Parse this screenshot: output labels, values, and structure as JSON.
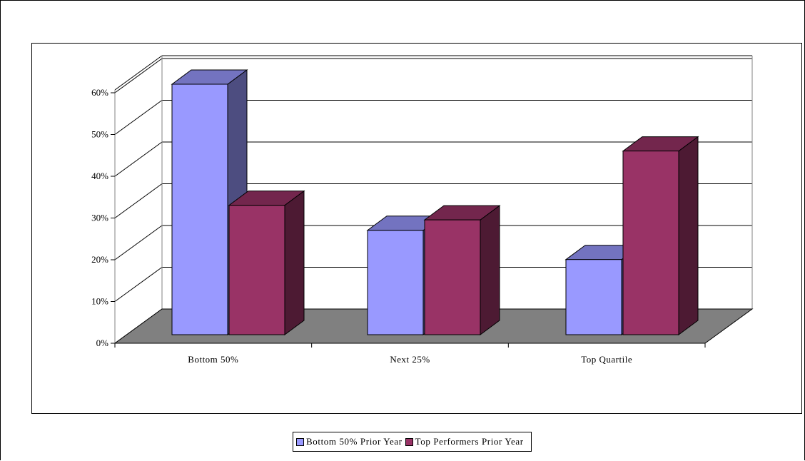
{
  "chart_data": {
    "type": "bar",
    "categories": [
      "Bottom 50%",
      "Next 25%",
      "Top Quartile"
    ],
    "series": [
      {
        "name": "Bottom 50% Prior Year",
        "values": [
          0.6,
          0.25,
          0.18
        ],
        "color": "#9999ff",
        "side_color": "#4d4d80",
        "top_color": "#7373c0"
      },
      {
        "name": "Top Performers Prior Year",
        "values": [
          0.31,
          0.275,
          0.44
        ],
        "color": "#993366",
        "side_color": "#4d1a33",
        "top_color": "#73264d"
      }
    ],
    "y_ticks": [
      "0%",
      "10%",
      "20%",
      "30%",
      "40%",
      "50%",
      "60%"
    ],
    "ylim": [
      0,
      0.6
    ],
    "grid": true,
    "legend_position": "bottom",
    "floor_color": "#808080",
    "title": "",
    "xlabel": "",
    "ylabel": ""
  }
}
